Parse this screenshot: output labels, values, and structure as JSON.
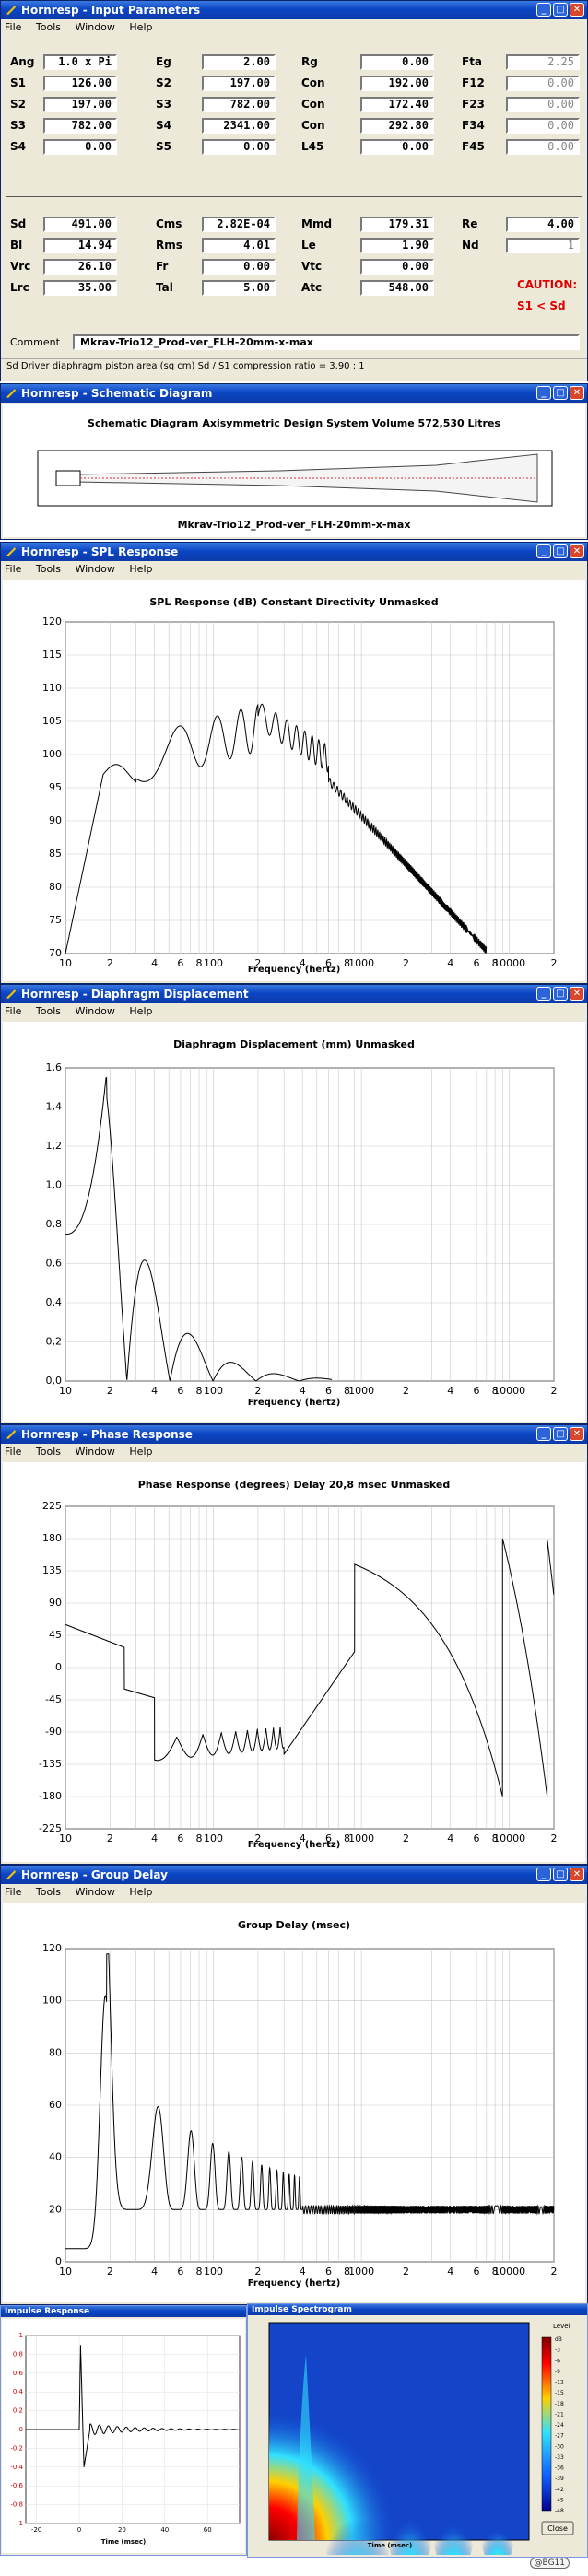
{
  "input_window": {
    "title": "Hornresp - Input Parameters",
    "menu": [
      "File",
      "Tools",
      "Window",
      "Help"
    ],
    "rows": [
      [
        {
          "l": "Ang",
          "v": "1.0 x Pi"
        },
        {
          "l": "Eg",
          "v": "2.00"
        },
        {
          "l": "Rg",
          "v": "0.00"
        },
        {
          "l": "Fta",
          "v": "2.25",
          "dim": true
        }
      ],
      [
        {
          "l": "S1",
          "v": "126.00"
        },
        {
          "l": "S2",
          "v": "197.00"
        },
        {
          "l": "Con",
          "v": "192.00"
        },
        {
          "l": "F12",
          "v": "0.00",
          "dim": true
        }
      ],
      [
        {
          "l": "S2",
          "v": "197.00"
        },
        {
          "l": "S3",
          "v": "782.00"
        },
        {
          "l": "Con",
          "v": "172.40"
        },
        {
          "l": "F23",
          "v": "0.00",
          "dim": true
        }
      ],
      [
        {
          "l": "S3",
          "v": "782.00"
        },
        {
          "l": "S4",
          "v": "2341.00"
        },
        {
          "l": "Con",
          "v": "292.80"
        },
        {
          "l": "F34",
          "v": "0.00",
          "dim": true
        }
      ],
      [
        {
          "l": "S4",
          "v": "0.00"
        },
        {
          "l": "S5",
          "v": "0.00"
        },
        {
          "l": "L45",
          "v": "0.00"
        },
        {
          "l": "F45",
          "v": "0.00",
          "dim": true
        }
      ]
    ],
    "rows2": [
      [
        {
          "l": "Sd",
          "v": "491.00"
        },
        {
          "l": "Cms",
          "v": "2.82E-04"
        },
        {
          "l": "Mmd",
          "v": "179.31"
        },
        {
          "l": "Re",
          "v": "4.00"
        }
      ],
      [
        {
          "l": "Bl",
          "v": "14.94"
        },
        {
          "l": "Rms",
          "v": "4.01"
        },
        {
          "l": "Le",
          "v": "1.90"
        },
        {
          "l": "Nd",
          "v": "1",
          "dim": true
        }
      ],
      [
        {
          "l": "Vrc",
          "v": "26.10"
        },
        {
          "l": "Fr",
          "v": "0.00"
        },
        {
          "l": "Vtc",
          "v": "0.00"
        }
      ],
      [
        {
          "l": "Lrc",
          "v": "35.00"
        },
        {
          "l": "Tal",
          "v": "5.00"
        },
        {
          "l": "Atc",
          "v": "548.00"
        }
      ]
    ],
    "caution_title": "CAUTION:",
    "caution_text": "S1 < Sd",
    "comment_label": "Comment",
    "comment_value": "Mkrav-Trio12_Prod-ver_FLH-20mm-x-max",
    "status": "Sd   Driver diaphragm piston area  (sq cm)   Sd / S1 compression ratio = 3.90 : 1"
  },
  "schematic_window": {
    "title": "Hornresp - Schematic Diagram",
    "heading": "Schematic Diagram    Axisymmetric Design    System Volume 572,530 Litres",
    "caption": "Mkrav-Trio12_Prod-ver_FLH-20mm-x-max"
  },
  "spl_window": {
    "title": "Hornresp - SPL Response",
    "menu": [
      "File",
      "Tools",
      "Window",
      "Help"
    ],
    "heading": "SPL Response (dB)    Constant Directivity    Unmasked",
    "xlabel": "Frequency (hertz)",
    "yticks": [
      "120",
      "115",
      "110",
      "105",
      "100",
      "95",
      "90",
      "85",
      "80",
      "75",
      "70"
    ]
  },
  "disp_window": {
    "title": "Hornresp - Diaphragm Displacement",
    "menu": [
      "File",
      "Tools",
      "Window",
      "Help"
    ],
    "heading": "Diaphragm Displacement (mm)    Unmasked",
    "xlabel": "Frequency (hertz)",
    "yticks": [
      "1,6",
      "1,4",
      "1,2",
      "1,0",
      "0,8",
      "0,6",
      "0,4",
      "0,2",
      "0,0"
    ]
  },
  "phase_window": {
    "title": "Hornresp - Phase Response",
    "menu": [
      "File",
      "Tools",
      "Window",
      "Help"
    ],
    "heading": "Phase Response (degrees)    Delay 20,8 msec    Unmasked",
    "xlabel": "Frequency (hertz)",
    "yticks": [
      "225",
      "180",
      "135",
      "90",
      "45",
      "0",
      "-45",
      "-90",
      "-135",
      "-180",
      "-225"
    ]
  },
  "gd_window": {
    "title": "Hornresp - Group Delay",
    "menu": [
      "File",
      "Tools",
      "Window",
      "Help"
    ],
    "heading": "Group Delay (msec)",
    "xlabel": "Frequency (hertz)",
    "yticks": [
      "120",
      "100",
      "80",
      "60",
      "40",
      "20",
      "0"
    ]
  },
  "xticks": [
    "10",
    "2",
    "4",
    "6",
    "8",
    "100",
    "2",
    "4",
    "6",
    "8",
    "1000",
    "2",
    "4",
    "6",
    "8",
    "10000",
    "2"
  ],
  "impulse_window": {
    "title": "Impulse Response",
    "xlabel": "Time (msec)",
    "yticks": [
      "1",
      "0.8",
      "0.6",
      "0.4",
      "0.2",
      "0",
      "-0.2",
      "-0.4",
      "-0.6",
      "-0.8",
      "-1"
    ],
    "xticks": [
      "-20",
      "0",
      "20",
      "40",
      "60"
    ]
  },
  "spectrogram_window": {
    "title": "Impulse Spectrogram",
    "xlabel": "Time (msec)",
    "legend_title": "Level",
    "legend_ticks": [
      "dB",
      "-3",
      "-6",
      "-9",
      "-12",
      "-15",
      "-18",
      "-21",
      "-24",
      "-27",
      "-30",
      "-33",
      "-36",
      "-39",
      "-42",
      "-45",
      "-48"
    ],
    "close_label": "Close"
  },
  "signature": "@BG11",
  "colors": {
    "titlebar": "#0b46c4",
    "caution": "#e00000",
    "curve": "#000000",
    "schematic_line": "#e03030"
  }
}
